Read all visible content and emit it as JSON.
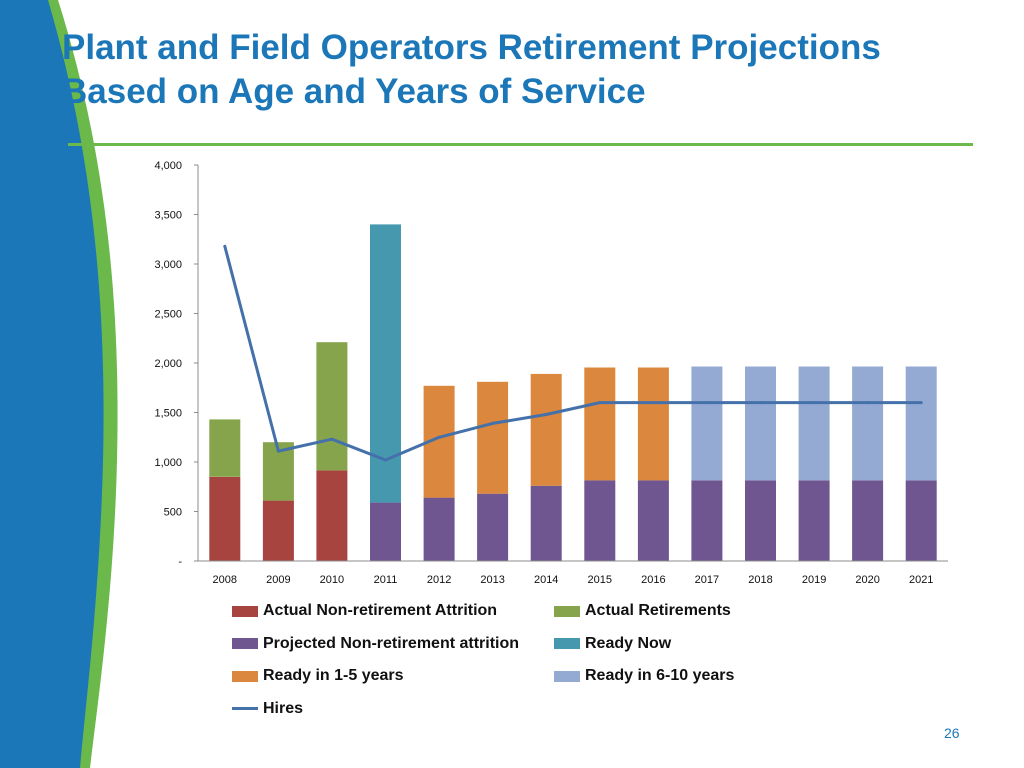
{
  "slide": {
    "title_line1": "Plant and Field Operators Retirement Projections",
    "title_line2": "Based on Age and Years of Service",
    "page_number": "26",
    "colors": {
      "title": "#1b77b7",
      "rule": "#6ab94a",
      "side_blue": "#1b77b7",
      "side_green": "#6ab94a"
    }
  },
  "chart_data": {
    "type": "bar",
    "stacked": true,
    "categories": [
      "2008",
      "2009",
      "2010",
      "2011",
      "2012",
      "2013",
      "2014",
      "2015",
      "2016",
      "2017",
      "2018",
      "2019",
      "2020",
      "2021"
    ],
    "series": [
      {
        "name": "Actual Non-retirement Attrition",
        "color": "#a8443f",
        "values": [
          850,
          610,
          915,
          0,
          0,
          0,
          0,
          0,
          0,
          0,
          0,
          0,
          0,
          0
        ]
      },
      {
        "name": "Actual Retirements",
        "color": "#86a44c",
        "values": [
          580,
          590,
          1295,
          0,
          0,
          0,
          0,
          0,
          0,
          0,
          0,
          0,
          0,
          0
        ]
      },
      {
        "name": "Projected Non-retirement attrition",
        "color": "#6f5690",
        "values": [
          0,
          0,
          0,
          590,
          640,
          680,
          760,
          815,
          815,
          815,
          815,
          815,
          815,
          815
        ]
      },
      {
        "name": "Ready Now",
        "color": "#4598ae",
        "values": [
          0,
          0,
          0,
          2810,
          0,
          0,
          0,
          0,
          0,
          0,
          0,
          0,
          0,
          0
        ]
      },
      {
        "name": "Ready in 1-5 years",
        "color": "#db873d",
        "values": [
          0,
          0,
          0,
          0,
          1130,
          1130,
          1130,
          1140,
          1140,
          0,
          0,
          0,
          0,
          0
        ]
      },
      {
        "name": "Ready in 6-10 years",
        "color": "#94aad3",
        "values": [
          0,
          0,
          0,
          0,
          0,
          0,
          0,
          0,
          0,
          1150,
          1150,
          1150,
          1150,
          1150
        ]
      }
    ],
    "line": {
      "name": "Hires",
      "color": "#4471a9",
      "values": [
        3180,
        1110,
        1230,
        1020,
        1250,
        1390,
        1480,
        1600,
        1600,
        1600,
        1600,
        1600,
        1600,
        1600
      ]
    },
    "yticks": [
      {
        "value": 0,
        "label": "-"
      },
      {
        "value": 500,
        "label": "500"
      },
      {
        "value": 1000,
        "label": "1,000"
      },
      {
        "value": 1500,
        "label": "1,500"
      },
      {
        "value": 2000,
        "label": "2,000"
      },
      {
        "value": 2500,
        "label": "2,500"
      },
      {
        "value": 3000,
        "label": "3,000"
      },
      {
        "value": 3500,
        "label": "3,500"
      },
      {
        "value": 4000,
        "label": "4,000"
      }
    ],
    "ylim": [
      0,
      4000
    ],
    "grid": false,
    "legend_position": "bottom"
  }
}
